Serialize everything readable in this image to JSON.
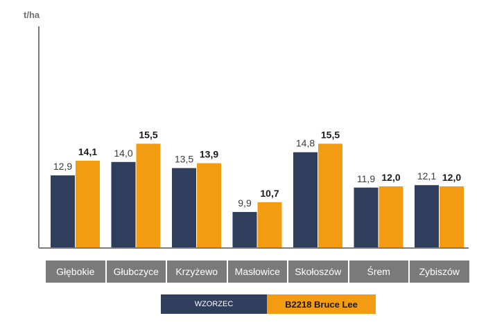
{
  "chart_data": {
    "type": "bar",
    "ylabel": "t/ha",
    "categories": [
      "Głębokie",
      "Głubczyce",
      "Krzyżewo",
      "Masłowice",
      "Skołoszów",
      "Śrem",
      "Zybiszów"
    ],
    "series": [
      {
        "name": "WZORZEC",
        "color": "#2e3e5c",
        "values": [
          12.9,
          14.0,
          13.5,
          9.9,
          14.8,
          11.9,
          12.1
        ],
        "labels": [
          "12,9",
          "14,0",
          "13,5",
          "9,9",
          "14,8",
          "11,9",
          "12,1"
        ]
      },
      {
        "name": "B2218 Bruce Lee",
        "color": "#f39c12",
        "values": [
          14.1,
          15.5,
          13.9,
          10.7,
          15.5,
          12.0,
          12.0
        ],
        "labels": [
          "14,1",
          "15,5",
          "13,9",
          "10,7",
          "15,5",
          "12,0",
          "12,0"
        ]
      }
    ],
    "legend_position": "bottom-center",
    "grid": false
  }
}
